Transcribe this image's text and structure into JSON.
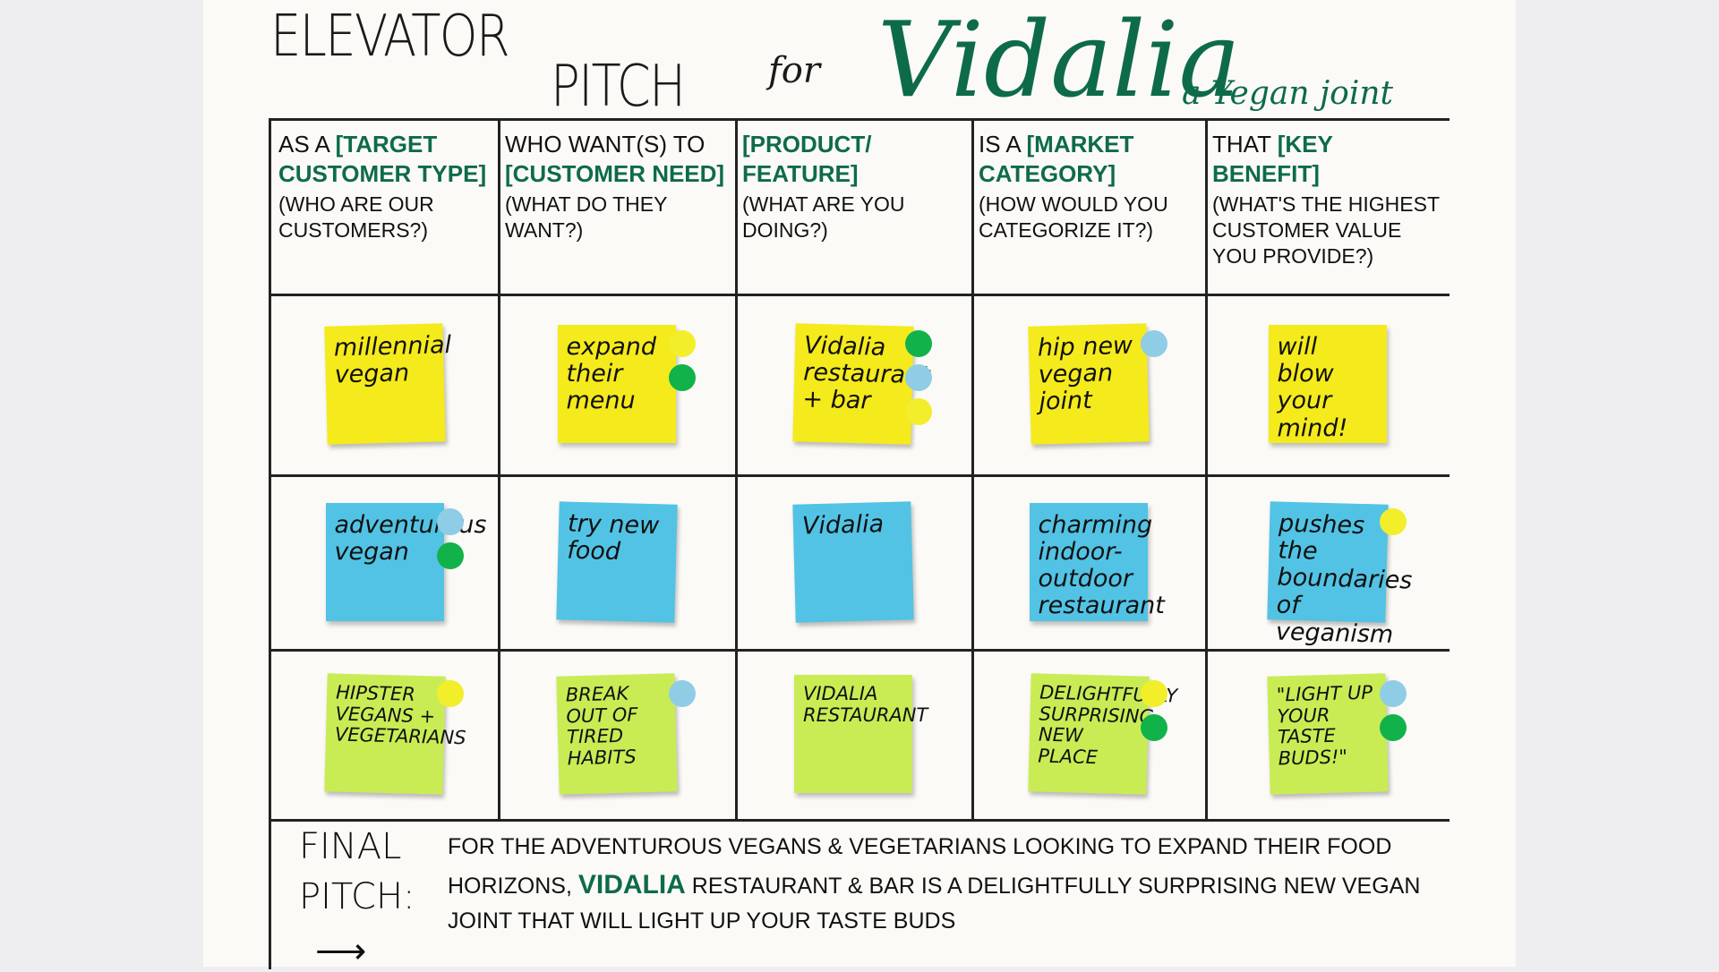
{
  "title": {
    "line1": "ELEVATOR",
    "line2": "PITCH",
    "for": "for",
    "brand": "Vidalia",
    "tagline": "a Yegan joint"
  },
  "headers": [
    {
      "pre": "As a ",
      "bold": "[Target customer type]",
      "sub": "(Who are our customers?)"
    },
    {
      "pre": "Who want(s) to ",
      "bold": "[Customer need]",
      "sub": "(What do they want?)"
    },
    {
      "pre": "",
      "bold": "[Product/ Feature]",
      "sub": "(What are you doing?)"
    },
    {
      "pre": "Is a ",
      "bold": "[Market category]",
      "sub": "(How would you categorize it?)"
    },
    {
      "pre": "That ",
      "bold": "[Key benefit]",
      "sub": "(What's the highest customer value you provide?)"
    }
  ],
  "colors": {
    "yellow": "#f5ea1c",
    "blue": "#52c3e4",
    "lime": "#c9ec55",
    "green": "#12b24a",
    "dotblue": "#8fcde6",
    "dotyellow": "#f2ee2a",
    "ink": "#0e6b4a"
  },
  "rows": [
    {
      "color": "yellow",
      "notes": [
        {
          "text": "millennial vegan",
          "dots": []
        },
        {
          "text": "expand their menu",
          "dots": [
            "dotyellow",
            "green"
          ]
        },
        {
          "text": "Vidalia restaurant + bar",
          "dots": [
            "green",
            "dotblue",
            "dotyellow"
          ]
        },
        {
          "text": "hip new vegan joint",
          "dots": [
            "dotblue"
          ]
        },
        {
          "text": "will blow your mind!",
          "dots": []
        }
      ]
    },
    {
      "color": "blue",
      "notes": [
        {
          "text": "adventurous vegan",
          "dots": [
            "dotblue",
            "green"
          ]
        },
        {
          "text": "try new food",
          "dots": []
        },
        {
          "text": "Vidalia",
          "dots": []
        },
        {
          "text": "charming indoor-outdoor restaurant",
          "dots": []
        },
        {
          "text": "pushes the boundaries of veganism",
          "dots": [
            "dotyellow"
          ]
        }
      ]
    },
    {
      "color": "lime",
      "notes": [
        {
          "text": "HIPSTER VEGANS + VEGETARIANS",
          "dots": [
            "dotyellow"
          ]
        },
        {
          "text": "BREAK OUT OF TIRED HABITS",
          "dots": [
            "dotblue"
          ]
        },
        {
          "text": "VIDALIA RESTAURANT",
          "dots": []
        },
        {
          "text": "DELIGHTFULLY SURPRISING NEW PLACE",
          "dots": [
            "dotyellow",
            "green"
          ]
        },
        {
          "text": "\"LIGHT UP YOUR TASTE BUDS!\"",
          "dots": [
            "dotblue",
            "green"
          ]
        }
      ]
    }
  ],
  "final": {
    "label1": "FINAL",
    "label2": "PITCH:",
    "part1": "For the adventurous vegans & vegetarians looking to expand their food horizons, ",
    "brand": "Vidalia",
    "part2": " restaurant & bar is a delightfully surprising new vegan joint that will light up your taste buds"
  }
}
